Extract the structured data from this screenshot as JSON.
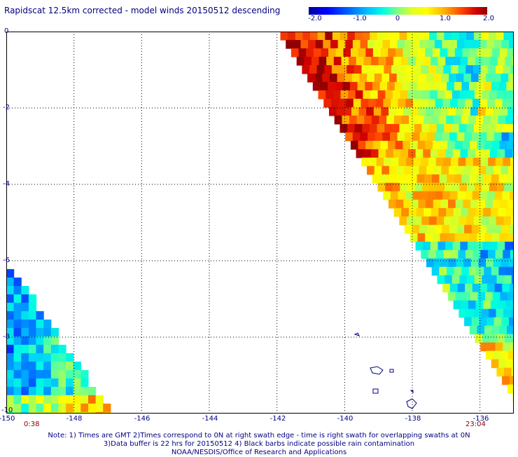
{
  "title": "Rapidscat 12.5km corrected - model winds 20150512 descending",
  "colorbar": {
    "ticks": [
      "-2.0",
      "-1.0",
      "0",
      "1.0",
      "2.0"
    ],
    "range": [
      -2.0,
      2.0
    ]
  },
  "map": {
    "lon_labels": [
      "-150",
      "-148",
      "-146",
      "-144",
      "-142",
      "-140",
      "-138",
      "-136"
    ],
    "lat_labels": [
      "0",
      "-2",
      "-4",
      "-6",
      "-8",
      "-10"
    ],
    "lon_range": [
      -150,
      -135
    ],
    "lat_range": [
      -10,
      0
    ]
  },
  "times": {
    "left": "0:38",
    "right": "23:04"
  },
  "notes": [
    "Note: 1) Times are GMT 2)Times correspond to 0N at right swath edge - time is right swath for overlapping swaths at 0N",
    "3)Data buffer is 22 hrs for 20150512 4) Black barbs indicate possible rain contamination",
    "NOAA/NESDIS/Office of Research and Applications"
  ],
  "colors": {
    "text": "#000080",
    "time_text": "#8b0000",
    "grid": "#000000"
  }
}
